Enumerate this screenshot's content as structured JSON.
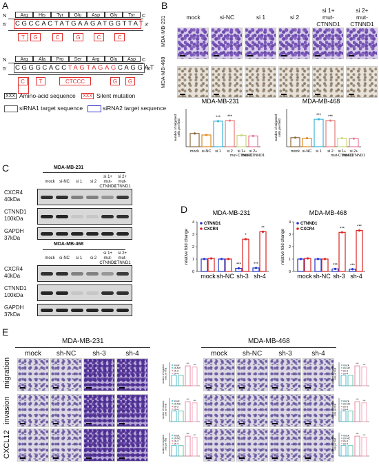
{
  "panels": {
    "A": "A",
    "B": "B",
    "C": "C",
    "D": "D",
    "E": "E"
  },
  "panelA": {
    "row1": {
      "n": "N",
      "c": "C",
      "five": "5'",
      "three": "3'",
      "aa": [
        "Arg",
        "His",
        "Tyr",
        "Glu",
        "Asp",
        "Gly",
        "Tyr"
      ],
      "seq": "CGCCACTATGAAGATGGTTAT",
      "subs": [
        "T",
        "G",
        "C",
        "G",
        "C",
        "C"
      ]
    },
    "row2": {
      "n": "N",
      "c": "C",
      "five": "5'",
      "three": "3'",
      "aa": [
        "Arg",
        "Ala",
        "Pro",
        "Ser",
        "Arg",
        "Glu",
        "Asp"
      ],
      "seq_black1": "CGGGCACC",
      "seq_red": "TAGTAGAG",
      "seq_black2": "CAGGAT",
      "subs": [
        "C",
        "T",
        "CTCCC",
        "G",
        "G"
      ]
    },
    "legend": {
      "aa_box": "XXX",
      "aa_label": "Amino-acid sequence",
      "silent_box": "XXX",
      "silent_label": "Silent mutation",
      "sirna1": "siRNA1 target sequence",
      "sirna2": "siRNA2 target sequence"
    }
  },
  "panelB": {
    "columns": [
      "mock",
      "si-NC",
      "si 1",
      "si 2",
      "si 1+\nmut-CTNND1",
      "si 2+\nmut-CTNND1"
    ],
    "row_labels": [
      "MDA-MB-231",
      "MDA-MB-468"
    ],
    "chart_titles": [
      "MDA-MB-231",
      "MDA-MB-468"
    ],
    "ylabel": "number of migrated\ncells per field",
    "stars": "***"
  },
  "panelC": {
    "cell1": "MDA-MB-231",
    "cell2": "MDA-MB-468",
    "lanes": [
      "mock",
      "si-NC",
      "si 1",
      "si 2",
      "si 1+\nmut-CTNND1",
      "si 2+\nmut-CTNND1"
    ],
    "proteins": [
      {
        "name": "CXCR4",
        "kda": "40kDa"
      },
      {
        "name": "CTNND1",
        "kda": "100kDa"
      },
      {
        "name": "GAPDH",
        "kda": "37kDa"
      }
    ]
  },
  "panelD": {
    "xcats": [
      "mock",
      "sh-NC",
      "sh-3",
      "sh-4"
    ],
    "ylabel": "relative fold change",
    "legend": [
      "CTNND1",
      "CXCR4"
    ],
    "colors": {
      "CTNND1": "#2233cc",
      "CXCR4": "#dd2222"
    }
  },
  "panelE": {
    "cell1": "MDA-MB-231",
    "cell2": "MDA-MB-468",
    "cols": [
      "mock",
      "sh-NC",
      "sh-3",
      "sh-4"
    ],
    "rows": [
      "migration",
      "invasion",
      "CXCL12"
    ],
    "legend": [
      "mock",
      "sh-NC",
      "sh-3",
      "sh-4"
    ],
    "ylabel_mig": "number of migrated\ncells per field",
    "ylabel_inv": "number of invasive\ncells per field"
  },
  "chart_data": [
    {
      "type": "bar",
      "title": "MDA-MB-231",
      "categories": [
        "mock",
        "si-NC",
        "si 1",
        "si 2",
        "si 1+\nmut-CTNND1",
        "si 2+\nmut-CTNND1"
      ],
      "values": [
        70,
        62,
        135,
        138,
        60,
        57
      ],
      "ylim": [
        0,
        200
      ],
      "colors": [
        "#8b6b3a",
        "#e08a20",
        "#39b5d8",
        "#e87878",
        "#c8d878",
        "#e87898"
      ],
      "annotations": [
        "",
        "",
        "***",
        "***",
        "",
        ""
      ]
    },
    {
      "type": "bar",
      "title": "MDA-MB-468",
      "categories": [
        "mock",
        "si-NC",
        "si 1",
        "si 2",
        "si 1+\nmut-CTNND1",
        "si 2+\nmut-CTNND1"
      ],
      "values": [
        48,
        45,
        145,
        138,
        45,
        43
      ],
      "ylim": [
        0,
        200
      ],
      "colors": [
        "#8b6b3a",
        "#e08a20",
        "#39b5d8",
        "#e87878",
        "#c8d878",
        "#e87898"
      ],
      "annotations": [
        "",
        "",
        "***",
        "***",
        "",
        ""
      ]
    },
    {
      "type": "bar",
      "title": "MDA-MB-231",
      "categories": [
        "mock",
        "sh-NC",
        "sh-3",
        "sh-4"
      ],
      "series": [
        {
          "name": "CTNND1",
          "values": [
            1.0,
            1.0,
            0.25,
            0.28
          ]
        },
        {
          "name": "CXCR4",
          "values": [
            1.05,
            1.0,
            2.6,
            3.2
          ]
        }
      ],
      "annotations": {
        "CTNND1": [
          "",
          "",
          "***",
          "***"
        ],
        "CXCR4": [
          "",
          "",
          "*",
          "**"
        ]
      }
    },
    {
      "type": "bar",
      "title": "MDA-MB-468",
      "categories": [
        "mock",
        "sh-NC",
        "sh-3",
        "sh-4"
      ],
      "series": [
        {
          "name": "CTNND1",
          "values": [
            1.0,
            1.0,
            0.2,
            0.18
          ]
        },
        {
          "name": "CXCR4",
          "values": [
            1.05,
            1.0,
            3.15,
            3.3
          ]
        }
      ],
      "annotations": {
        "CTNND1": [
          "",
          "",
          "***",
          "***"
        ],
        "CXCR4": [
          "",
          "",
          "***",
          "***"
        ]
      }
    }
  ]
}
